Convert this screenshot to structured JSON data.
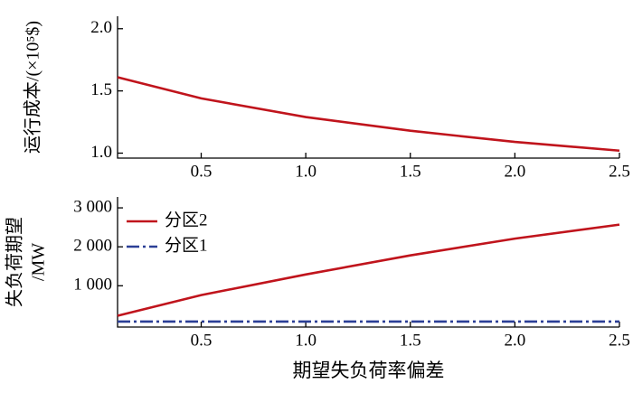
{
  "chart_data": [
    {
      "type": "line",
      "y_label": "运行成本/(×10⁵$)",
      "x": [
        0.1,
        0.5,
        1.0,
        1.5,
        2.0,
        2.5
      ],
      "series": [
        {
          "name": "运行成本",
          "color": "#c0141c",
          "values": [
            1.61,
            1.44,
            1.29,
            1.18,
            1.09,
            1.02
          ]
        }
      ],
      "xlim": [
        0.1,
        2.5
      ],
      "xticks": [
        0.5,
        {
          "value": 1.0,
          "label": "1.0"
        },
        1.5,
        {
          "value": 2.0,
          "label": "2.0"
        },
        2.5
      ],
      "ylim": [
        0.96,
        2.1
      ],
      "yticks": [
        {
          "value": 1.0,
          "label": "1.0"
        },
        1.5,
        {
          "value": 2.0,
          "label": "2.0"
        }
      ]
    },
    {
      "type": "line",
      "y_label": [
        "失负荷期望",
        "/MW"
      ],
      "x_label": "期望失负荷率偏差",
      "x": [
        0.1,
        0.5,
        1.0,
        1.5,
        2.0,
        2.5
      ],
      "series": [
        {
          "name": "分区2",
          "color": "#c0141c",
          "dash": "solid",
          "values": [
            230,
            760,
            1290,
            1780,
            2210,
            2570
          ]
        },
        {
          "name": "分区1",
          "color": "#2b3f96",
          "dash": "dashdot",
          "values": [
            80,
            80,
            80,
            80,
            80,
            80
          ]
        }
      ],
      "xlim": [
        0.1,
        2.5
      ],
      "xticks": [
        0.5,
        {
          "value": 1.0,
          "label": "1.0"
        },
        1.5,
        {
          "value": 2.0,
          "label": "2.0"
        },
        2.5
      ],
      "ylim": [
        -60,
        3280
      ],
      "yticks": [
        {
          "value": 1000,
          "label": "1 000"
        },
        {
          "value": 2000,
          "label": "2 000"
        },
        {
          "value": 3000,
          "label": "3 000"
        }
      ],
      "legend": "upper left"
    }
  ]
}
